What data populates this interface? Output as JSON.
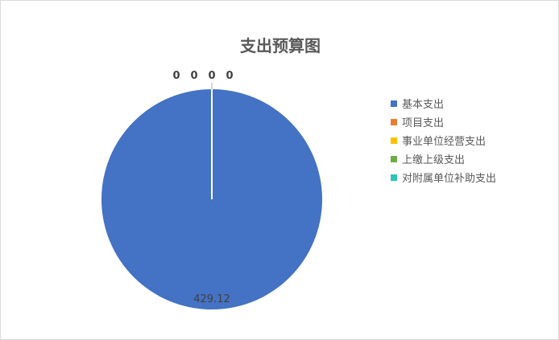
{
  "chart_data": {
    "type": "pie",
    "title": "支出预算图",
    "categories": [
      "基本支出",
      "项目支出",
      "事业单位经营支出",
      "上缴上级支出",
      "对附属单位补助支出"
    ],
    "values": [
      429.12,
      0,
      0,
      0,
      0
    ],
    "data_labels": [
      "429.12",
      "0",
      "0",
      "0",
      "0"
    ],
    "colors": [
      "#4472c4",
      "#ed7d31",
      "#ffc000",
      "#70ad47",
      "#2ec4b6"
    ],
    "legend_position": "right"
  }
}
